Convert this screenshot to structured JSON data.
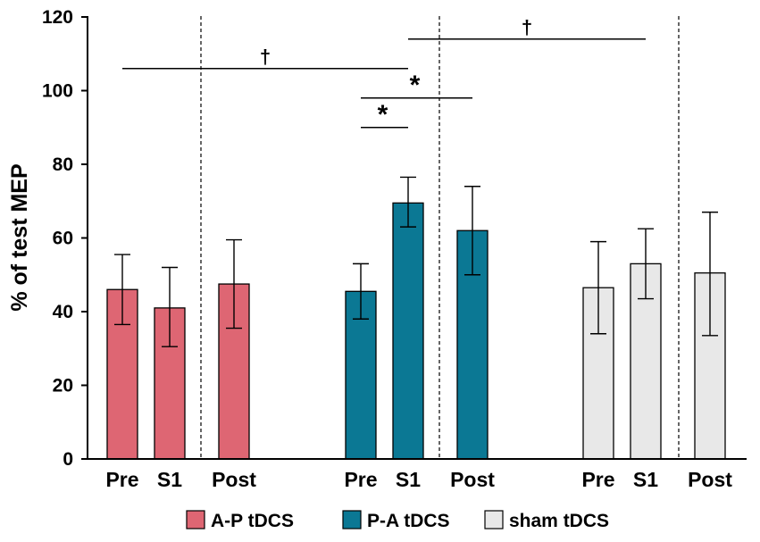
{
  "chart_data": {
    "type": "bar",
    "title": "",
    "xlabel": "",
    "ylabel": "% of test MEP",
    "ylim": [
      0,
      120
    ],
    "yticks": [
      "0",
      "20",
      "40",
      "60",
      "80",
      "100",
      "120"
    ],
    "groups": [
      {
        "name": "A-P tDCS",
        "color": "#DE6673",
        "bars": [
          {
            "label": "Pre",
            "value": 46,
            "err_low": 9.5,
            "err_high": 9.5
          },
          {
            "label": "S1",
            "value": 41,
            "err_low": 10.5,
            "err_high": 11
          },
          {
            "label": "Post",
            "value": 47.5,
            "err_low": 12,
            "err_high": 12
          }
        ]
      },
      {
        "name": "P-A tDCS",
        "color": "#0B7894",
        "bars": [
          {
            "label": "Pre",
            "value": 45.5,
            "err_low": 7.5,
            "err_high": 7.5
          },
          {
            "label": "S1",
            "value": 69.5,
            "err_low": 6.5,
            "err_high": 7
          },
          {
            "label": "Post",
            "value": 62,
            "err_low": 12,
            "err_high": 12
          }
        ]
      },
      {
        "name": "sham tDCS",
        "color": "#E8E8E8",
        "bars": [
          {
            "label": "Pre",
            "value": 46.5,
            "err_low": 12.5,
            "err_high": 12.5
          },
          {
            "label": "S1",
            "value": 53,
            "err_low": 9.5,
            "err_high": 9.5
          },
          {
            "label": "Post",
            "value": 50.5,
            "err_low": 17,
            "err_high": 16.5
          }
        ]
      }
    ],
    "significance": [
      {
        "symbol": "†",
        "from_group": 0,
        "from_bar": 0,
        "to_group": 1,
        "to_bar": 1,
        "y": 106
      },
      {
        "symbol": "†",
        "from_group": 1,
        "from_bar": 1,
        "to_group": 2,
        "to_bar": 1,
        "y": 114
      },
      {
        "symbol": "*",
        "from_group": 1,
        "from_bar": 0,
        "to_group": 1,
        "to_bar": 2,
        "y": 98
      },
      {
        "symbol": "*",
        "from_group": 1,
        "from_bar": 0,
        "to_group": 1,
        "to_bar": 1,
        "y": 90
      }
    ],
    "legend": {
      "placement": "bottom",
      "entries": [
        "A-P tDCS",
        "P-A tDCS",
        "sham tDCS"
      ]
    }
  }
}
